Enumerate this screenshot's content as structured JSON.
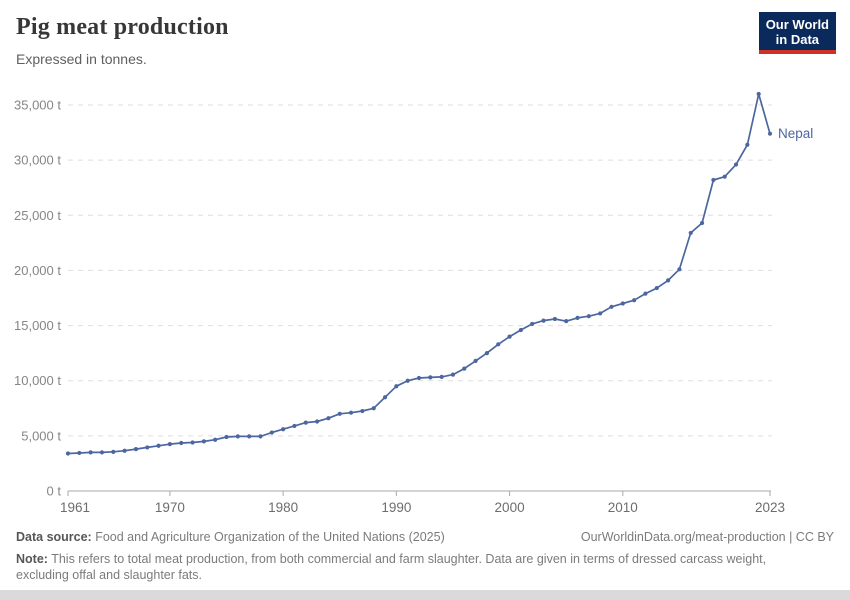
{
  "header": {
    "title": "Pig meat production",
    "subtitle": "Expressed in tonnes.",
    "logo": {
      "line1": "Our World",
      "line2": "in Data"
    }
  },
  "colors": {
    "line": "#4c669f",
    "grid": "#dedede",
    "axis": "#aaaaaa",
    "y_tick_label": "#868686",
    "x_tick_label": "#6d6d6d",
    "logo_bg": "#0a2a5c",
    "logo_accent": "#cf3127"
  },
  "chart_data": {
    "type": "line",
    "title": "Pig meat production",
    "ylabel": "",
    "xlabel": "",
    "unit": "t",
    "entity_label": "Nepal",
    "grid": "horizontal-dashed",
    "legend_position": "end-of-line",
    "ylim": [
      0,
      36500
    ],
    "xlim": [
      1961,
      2023
    ],
    "y_tick_values": [
      0,
      5000,
      10000,
      15000,
      20000,
      25000,
      30000,
      35000
    ],
    "x_tick_labels": [
      1961,
      1970,
      1980,
      1990,
      2000,
      2010,
      2023
    ],
    "x": [
      1961,
      1962,
      1963,
      1964,
      1965,
      1966,
      1967,
      1968,
      1969,
      1970,
      1971,
      1972,
      1973,
      1974,
      1975,
      1976,
      1977,
      1978,
      1979,
      1980,
      1981,
      1982,
      1983,
      1984,
      1985,
      1986,
      1987,
      1988,
      1989,
      1990,
      1991,
      1992,
      1993,
      1994,
      1995,
      1996,
      1997,
      1998,
      1999,
      2000,
      2001,
      2002,
      2003,
      2004,
      2005,
      2006,
      2007,
      2008,
      2009,
      2010,
      2011,
      2012,
      2013,
      2014,
      2015,
      2016,
      2017,
      2018,
      2019,
      2020,
      2021,
      2022,
      2023
    ],
    "series": [
      {
        "name": "Nepal",
        "color": "#4c669f",
        "values": [
          3400,
          3450,
          3500,
          3500,
          3550,
          3650,
          3800,
          3950,
          4100,
          4250,
          4350,
          4400,
          4500,
          4650,
          4900,
          4950,
          4950,
          4950,
          5300,
          5600,
          5900,
          6200,
          6300,
          6600,
          7000,
          7100,
          7250,
          7500,
          8500,
          9500,
          10000,
          10250,
          10300,
          10350,
          10550,
          11100,
          11800,
          12500,
          13300,
          14000,
          14600,
          15150,
          15450,
          15600,
          15400,
          15700,
          15850,
          16100,
          16700,
          17000,
          17300,
          17900,
          18400,
          19100,
          20100,
          23400,
          24300,
          28200,
          28500,
          29600,
          31400,
          36000,
          32400
        ]
      }
    ]
  },
  "footer": {
    "source_label": "Data source:",
    "source_text": "Food and Agriculture Organization of the United Nations (2025)",
    "link_text": "OurWorldinData.org/meat-production | CC BY",
    "note_label": "Note:",
    "note_text": "This refers to total meat production, from both commercial and farm slaughter. Data are given in terms of dressed carcass weight, excluding offal and slaughter fats."
  }
}
